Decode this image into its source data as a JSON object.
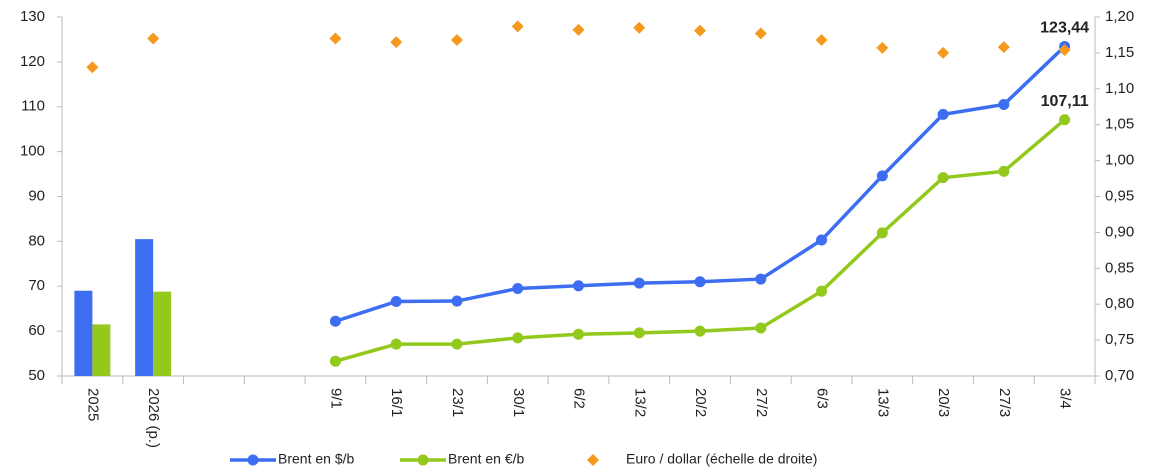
{
  "chart_data": {
    "type": "combo",
    "categories": [
      "2025",
      "2026 (p.)",
      null,
      null,
      "9/1",
      "16/1",
      "23/1",
      "30/1",
      "6/2",
      "13/2",
      "20/2",
      "27/2",
      "6/3",
      "13/3",
      "20/3",
      "27/3",
      "3/4"
    ],
    "series": [
      {
        "name": "Brent en $/b",
        "color": "#3d6ef2",
        "marker": "circle",
        "line": true,
        "bar_values": [
          69,
          80.5,
          null,
          null,
          null,
          null,
          null,
          null,
          null,
          null,
          null,
          null,
          null,
          null,
          null,
          null,
          null
        ],
        "values": [
          null,
          null,
          null,
          null,
          62.2,
          66.6,
          66.7,
          69.5,
          70.1,
          70.7,
          71,
          71.6,
          80.3,
          94.6,
          108.3,
          110.5,
          123.44
        ],
        "value_labels": [
          null,
          null,
          null,
          null,
          null,
          null,
          null,
          null,
          null,
          null,
          null,
          null,
          null,
          null,
          null,
          null,
          "123,44"
        ]
      },
      {
        "name": "Brent en €/b",
        "color": "#92c91c",
        "marker": "circle",
        "line": true,
        "bar_values": [
          61.5,
          68.8,
          null,
          null,
          null,
          null,
          null,
          null,
          null,
          null,
          null,
          null,
          null,
          null,
          null,
          null,
          null
        ],
        "values": [
          null,
          null,
          null,
          null,
          53.3,
          57.1,
          57.1,
          58.5,
          59.3,
          59.6,
          60,
          60.7,
          68.9,
          81.9,
          94.2,
          95.6,
          107.11
        ],
        "value_labels": [
          null,
          null,
          null,
          null,
          null,
          null,
          null,
          null,
          null,
          null,
          null,
          null,
          null,
          null,
          null,
          null,
          "107,11"
        ]
      },
      {
        "name": "Euro / dollar (échelle de droite)",
        "color": "#f59a1f",
        "marker": "diamond",
        "line": false,
        "axis": "y2",
        "values": [
          1.13,
          1.17,
          null,
          null,
          1.17,
          1.165,
          1.168,
          1.187,
          1.182,
          1.185,
          1.181,
          1.177,
          1.168,
          1.157,
          1.15,
          1.158,
          1.154
        ]
      }
    ],
    "ylim": [
      50,
      130
    ],
    "yticks": [
      50,
      60,
      70,
      80,
      90,
      100,
      110,
      120,
      130
    ],
    "y2lim": [
      0.7,
      1.2
    ],
    "y2ticks": [
      {
        "value": 0.7,
        "label": "0,70"
      },
      {
        "value": 0.75,
        "label": "0,75"
      },
      {
        "value": 0.8,
        "label": "0,80"
      },
      {
        "value": 0.85,
        "label": "0,85"
      },
      {
        "value": 0.9,
        "label": "0,90"
      },
      {
        "value": 0.95,
        "label": "0,95"
      },
      {
        "value": 1.0,
        "label": "1,00"
      },
      {
        "value": 1.05,
        "label": "1,05"
      },
      {
        "value": 1.1,
        "label": "1,10"
      },
      {
        "value": 1.15,
        "label": "1,15"
      },
      {
        "value": 1.2,
        "label": "1,20"
      }
    ],
    "y2_color": "#f0821e",
    "grid": false,
    "legend": "bottom"
  }
}
